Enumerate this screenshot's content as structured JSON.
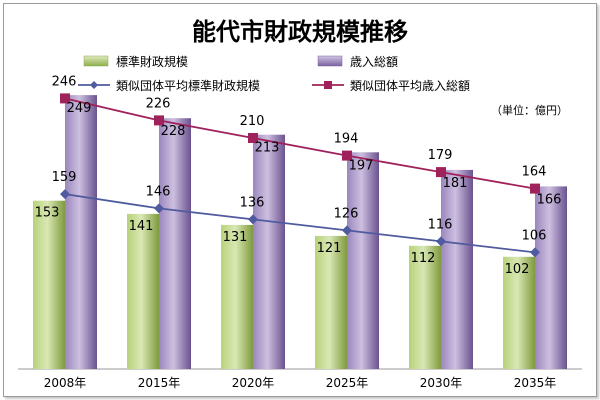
{
  "chart_data": {
    "type": "bar",
    "title": "能代市財政規模推移",
    "unit": "（単位：億円）",
    "categories": [
      "2008年",
      "2015年",
      "2020年",
      "2025年",
      "2030年",
      "2035年"
    ],
    "series": [
      {
        "name": "標準財政規模",
        "kind": "bar",
        "values": [
          153,
          141,
          131,
          121,
          112,
          102
        ],
        "color": "#9bbb59"
      },
      {
        "name": "歳入総額",
        "kind": "bar",
        "values": [
          249,
          228,
          213,
          197,
          181,
          166
        ],
        "color": "#8064a2"
      },
      {
        "name": "類似団体平均標準財政規模",
        "kind": "line",
        "values": [
          159,
          146,
          136,
          126,
          116,
          106
        ],
        "color": "#4f5b9e"
      },
      {
        "name": "類似団体平均歳入総額",
        "kind": "line",
        "values": [
          246,
          226,
          210,
          194,
          179,
          164
        ],
        "color": "#a0225a"
      }
    ],
    "ylim": [
      0,
      300
    ],
    "grid": false,
    "legend": "top-left"
  }
}
